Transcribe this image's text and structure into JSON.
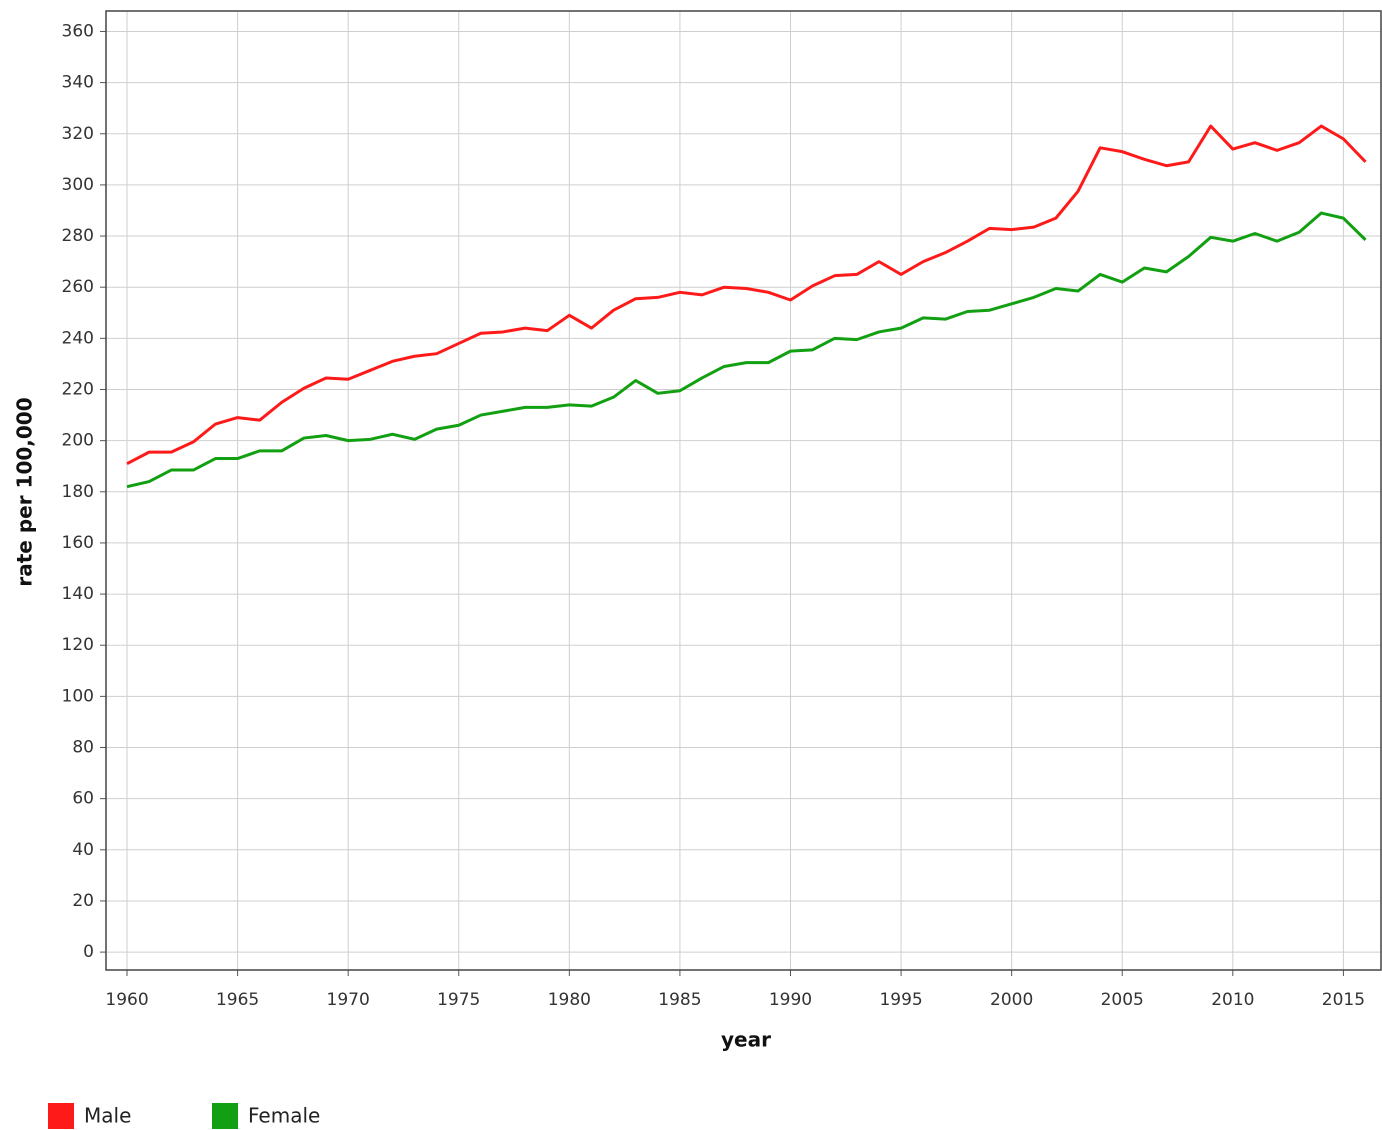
{
  "chart_data": {
    "type": "line",
    "x_label": "year",
    "y_label": "rate per 100,000",
    "x": [
      1960,
      1961,
      1962,
      1963,
      1964,
      1965,
      1966,
      1967,
      1968,
      1969,
      1970,
      1971,
      1972,
      1973,
      1974,
      1975,
      1976,
      1977,
      1978,
      1979,
      1980,
      1981,
      1982,
      1983,
      1984,
      1985,
      1986,
      1987,
      1988,
      1989,
      1990,
      1991,
      1992,
      1993,
      1994,
      1995,
      1996,
      1997,
      1998,
      1999,
      2000,
      2001,
      2002,
      2003,
      2004,
      2005,
      2006,
      2007,
      2008,
      2009,
      2010,
      2011,
      2012,
      2013,
      2014,
      2015,
      2016
    ],
    "series": [
      {
        "name": "Male",
        "color": "#ff1a1a",
        "values": [
          191,
          195.5,
          195.5,
          199.5,
          206.5,
          209,
          208,
          215,
          220.5,
          224.5,
          224,
          227.5,
          231,
          233,
          234,
          238,
          242,
          242.5,
          244,
          243,
          249,
          244,
          251,
          255.5,
          256,
          258,
          257,
          260,
          259.5,
          258,
          255,
          260.5,
          264.5,
          265,
          270,
          265,
          270,
          273.5,
          278,
          283,
          282.5,
          283.5,
          287,
          297.5,
          314.5,
          313,
          310,
          307.5,
          309,
          323,
          314,
          316.5,
          313.5,
          316.5,
          323,
          318,
          309
        ]
      },
      {
        "name": "Female",
        "color": "#12a012",
        "values": [
          182,
          184,
          188.5,
          188.5,
          193,
          193,
          196,
          196,
          201,
          202,
          200,
          200.5,
          202.5,
          200.5,
          204.5,
          206,
          210,
          211.5,
          213,
          213,
          214,
          213.5,
          217,
          223.5,
          218.5,
          219.5,
          224.5,
          229,
          230.5,
          230.5,
          235,
          235.5,
          240,
          239.5,
          242.5,
          244,
          248,
          247.5,
          250.5,
          251,
          253.5,
          256,
          259.5,
          258.5,
          265,
          262,
          267.5,
          266,
          272,
          279.5,
          278,
          281,
          278,
          281.5,
          289,
          287,
          278.5
        ]
      }
    ],
    "xlim": [
      1959.05,
      2016.7
    ],
    "xticks": [
      1960,
      1965,
      1970,
      1975,
      1980,
      1985,
      1990,
      1995,
      2000,
      2005,
      2010,
      2015
    ],
    "ylim": [
      -7,
      368
    ],
    "yticks": [
      0,
      20,
      40,
      60,
      80,
      100,
      120,
      140,
      160,
      180,
      200,
      220,
      240,
      260,
      280,
      300,
      320,
      340,
      360
    ],
    "grid": true,
    "legend": "bottom-left"
  }
}
